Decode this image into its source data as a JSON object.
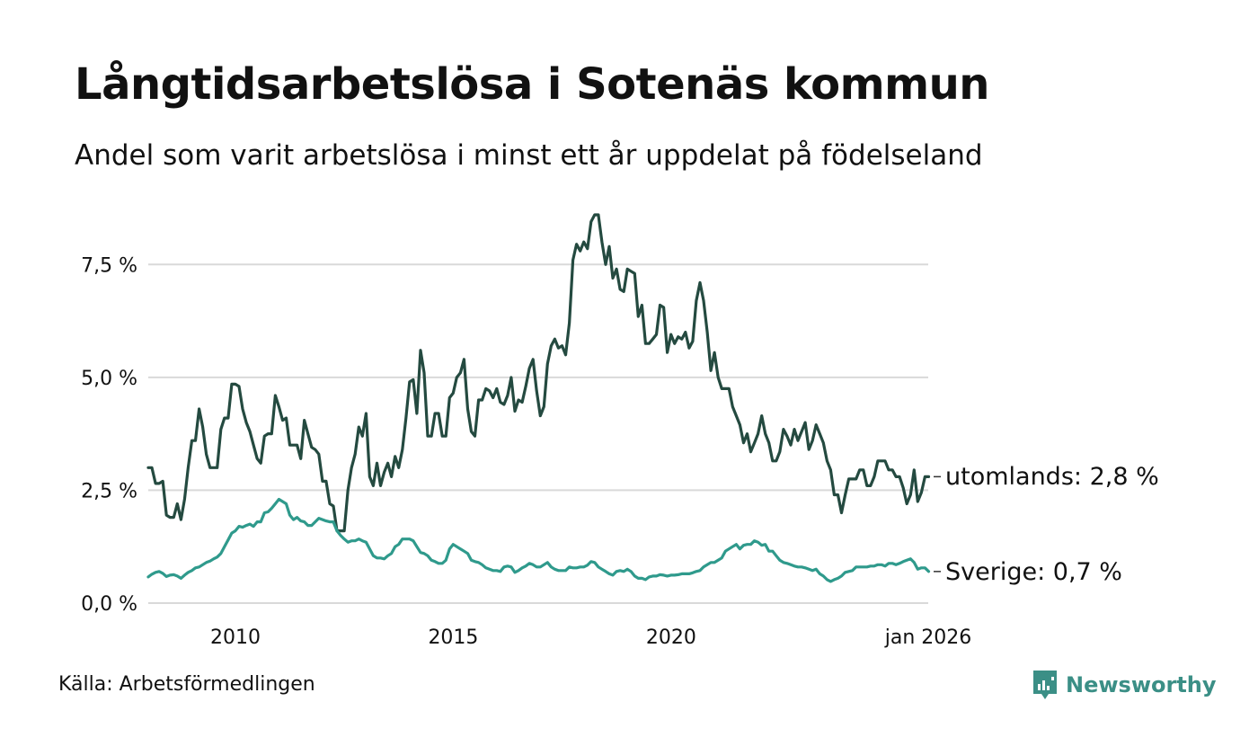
{
  "title": "Långtidsarbetslösa i Sotenäs kommun",
  "subtitle": "Andel som varit arbetslösa i minst ett år uppdelat på födelseland",
  "source": "Källa: Arbetsförmedlingen",
  "brand": {
    "name": "Newsworthy",
    "icon": "newsworthy-logo-icon"
  },
  "colors": {
    "utomlands": "#244a40",
    "sverige": "#2f9a8c",
    "grid": "#d9d9d9",
    "text": "#111111"
  },
  "chart_data": {
    "type": "line",
    "title": "Långtidsarbetslösa i Sotenäs kommun",
    "xlabel": "",
    "ylabel": "",
    "x_start": 2008.0,
    "x_step": 0.0833,
    "xlim": [
      2008.0,
      2025.9
    ],
    "ylim": [
      0,
      8.8
    ],
    "yticks": [
      0,
      2.5,
      5.0,
      7.5
    ],
    "ytick_labels": [
      "0,0 %",
      "2,5 %",
      "5,0 %",
      "7,5 %"
    ],
    "xticks": [
      2010,
      2015,
      2020,
      2025.9
    ],
    "xtick_labels": [
      "2010",
      "2015",
      "2020",
      "jan 2026"
    ],
    "grid": true,
    "series": [
      {
        "name": "utomlands",
        "end_label": "utomlands: 2,8 %",
        "values": [
          3.0,
          3.0,
          2.65,
          2.65,
          2.7,
          1.95,
          1.9,
          1.9,
          2.2,
          1.85,
          2.3,
          3.0,
          3.6,
          3.6,
          4.3,
          3.9,
          3.3,
          3.0,
          3.0,
          3.0,
          3.85,
          4.1,
          4.1,
          4.85,
          4.85,
          4.8,
          4.3,
          4.0,
          3.8,
          3.5,
          3.2,
          3.1,
          3.7,
          3.75,
          3.75,
          4.6,
          4.35,
          4.05,
          4.1,
          3.5,
          3.5,
          3.5,
          3.2,
          4.05,
          3.75,
          3.45,
          3.4,
          3.3,
          2.7,
          2.7,
          2.2,
          2.15,
          1.6,
          1.6,
          1.6,
          2.5,
          3.0,
          3.3,
          3.9,
          3.7,
          4.2,
          2.8,
          2.6,
          3.1,
          2.6,
          2.9,
          3.1,
          2.8,
          3.25,
          3.0,
          3.4,
          4.1,
          4.9,
          4.95,
          4.2,
          5.6,
          5.1,
          3.7,
          3.7,
          4.2,
          4.2,
          3.7,
          3.7,
          4.55,
          4.65,
          5.0,
          5.1,
          5.4,
          4.3,
          3.8,
          3.7,
          4.5,
          4.5,
          4.75,
          4.7,
          4.55,
          4.75,
          4.45,
          4.4,
          4.6,
          5.0,
          4.25,
          4.5,
          4.45,
          4.8,
          5.2,
          5.4,
          4.7,
          4.15,
          4.35,
          5.3,
          5.7,
          5.85,
          5.65,
          5.7,
          5.5,
          6.2,
          7.6,
          7.95,
          7.8,
          8.0,
          7.85,
          8.45,
          8.6,
          8.6,
          8.0,
          7.5,
          7.9,
          7.2,
          7.4,
          6.95,
          6.9,
          7.4,
          7.35,
          7.3,
          6.35,
          6.6,
          5.75,
          5.75,
          5.85,
          5.95,
          6.6,
          6.55,
          5.55,
          5.95,
          5.75,
          5.9,
          5.85,
          6.0,
          5.65,
          5.8,
          6.7,
          7.1,
          6.7,
          6.0,
          5.15,
          5.55,
          5.0,
          4.75,
          4.75,
          4.75,
          4.35,
          4.15,
          3.95,
          3.55,
          3.75,
          3.35,
          3.55,
          3.75,
          4.15,
          3.75,
          3.55,
          3.15,
          3.15,
          3.35,
          3.85,
          3.7,
          3.5,
          3.85,
          3.6,
          3.8,
          4.0,
          3.4,
          3.6,
          3.95,
          3.75,
          3.55,
          3.15,
          2.95,
          2.4,
          2.4,
          2.0,
          2.4,
          2.75,
          2.75,
          2.75,
          2.95,
          2.95,
          2.6,
          2.6,
          2.8,
          3.15,
          3.15,
          3.15,
          2.95,
          2.95,
          2.8,
          2.8,
          2.55,
          2.2,
          2.4,
          2.95,
          2.25,
          2.45,
          2.8,
          2.8
        ]
      },
      {
        "name": "Sverige",
        "end_label": "Sverige: 0,7 %",
        "values": [
          0.58,
          0.64,
          0.68,
          0.7,
          0.66,
          0.59,
          0.62,
          0.63,
          0.6,
          0.55,
          0.62,
          0.68,
          0.72,
          0.78,
          0.8,
          0.85,
          0.9,
          0.93,
          0.98,
          1.02,
          1.1,
          1.25,
          1.4,
          1.55,
          1.6,
          1.7,
          1.68,
          1.72,
          1.75,
          1.7,
          1.8,
          1.8,
          2.0,
          2.02,
          2.1,
          2.2,
          2.3,
          2.25,
          2.2,
          1.95,
          1.85,
          1.9,
          1.82,
          1.8,
          1.72,
          1.72,
          1.8,
          1.88,
          1.85,
          1.82,
          1.8,
          1.8,
          1.6,
          1.5,
          1.42,
          1.35,
          1.38,
          1.38,
          1.42,
          1.38,
          1.35,
          1.2,
          1.05,
          1.0,
          1.0,
          0.98,
          1.05,
          1.1,
          1.25,
          1.3,
          1.42,
          1.42,
          1.42,
          1.38,
          1.25,
          1.12,
          1.1,
          1.05,
          0.95,
          0.92,
          0.88,
          0.88,
          0.95,
          1.2,
          1.3,
          1.25,
          1.2,
          1.15,
          1.1,
          0.95,
          0.92,
          0.9,
          0.85,
          0.78,
          0.75,
          0.72,
          0.72,
          0.7,
          0.8,
          0.82,
          0.8,
          0.68,
          0.72,
          0.78,
          0.82,
          0.88,
          0.85,
          0.8,
          0.8,
          0.85,
          0.9,
          0.8,
          0.75,
          0.72,
          0.72,
          0.72,
          0.8,
          0.78,
          0.78,
          0.8,
          0.8,
          0.84,
          0.92,
          0.9,
          0.8,
          0.75,
          0.7,
          0.65,
          0.62,
          0.7,
          0.72,
          0.7,
          0.75,
          0.7,
          0.6,
          0.55,
          0.55,
          0.52,
          0.58,
          0.6,
          0.6,
          0.63,
          0.62,
          0.6,
          0.62,
          0.62,
          0.63,
          0.65,
          0.65,
          0.65,
          0.67,
          0.7,
          0.72,
          0.8,
          0.85,
          0.9,
          0.9,
          0.95,
          1.0,
          1.15,
          1.2,
          1.25,
          1.3,
          1.2,
          1.28,
          1.3,
          1.3,
          1.38,
          1.35,
          1.28,
          1.3,
          1.15,
          1.15,
          1.05,
          0.95,
          0.9,
          0.88,
          0.85,
          0.82,
          0.8,
          0.8,
          0.78,
          0.75,
          0.72,
          0.75,
          0.65,
          0.6,
          0.52,
          0.48,
          0.52,
          0.55,
          0.6,
          0.68,
          0.7,
          0.72,
          0.8,
          0.8,
          0.8,
          0.8,
          0.82,
          0.82,
          0.85,
          0.85,
          0.82,
          0.88,
          0.88,
          0.85,
          0.88,
          0.92,
          0.95,
          0.98,
          0.9,
          0.75,
          0.78,
          0.78,
          0.7
        ]
      }
    ]
  }
}
